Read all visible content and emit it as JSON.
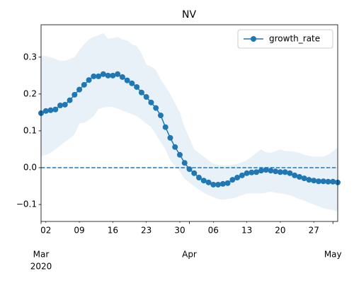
{
  "chart_data": {
    "type": "line",
    "title": "NV",
    "x": [
      "2020-03-01",
      "2020-03-02",
      "2020-03-03",
      "2020-03-04",
      "2020-03-05",
      "2020-03-06",
      "2020-03-07",
      "2020-03-08",
      "2020-03-09",
      "2020-03-10",
      "2020-03-11",
      "2020-03-12",
      "2020-03-13",
      "2020-03-14",
      "2020-03-15",
      "2020-03-16",
      "2020-03-17",
      "2020-03-18",
      "2020-03-19",
      "2020-03-20",
      "2020-03-21",
      "2020-03-22",
      "2020-03-23",
      "2020-03-24",
      "2020-03-25",
      "2020-03-26",
      "2020-03-27",
      "2020-03-28",
      "2020-03-29",
      "2020-03-30",
      "2020-03-31",
      "2020-04-01",
      "2020-04-02",
      "2020-04-03",
      "2020-04-04",
      "2020-04-05",
      "2020-04-06",
      "2020-04-07",
      "2020-04-08",
      "2020-04-09",
      "2020-04-10",
      "2020-04-11",
      "2020-04-12",
      "2020-04-13",
      "2020-04-14",
      "2020-04-15",
      "2020-04-16",
      "2020-04-17",
      "2020-04-18",
      "2020-04-19",
      "2020-04-20",
      "2020-04-21",
      "2020-04-22",
      "2020-04-23",
      "2020-04-24",
      "2020-04-25",
      "2020-04-26",
      "2020-04-27",
      "2020-04-28",
      "2020-04-29",
      "2020-04-30",
      "2020-05-01",
      "2020-05-02"
    ],
    "series": [
      {
        "name": "growth_rate",
        "color": "#1f77b4",
        "values": [
          0.148,
          0.154,
          0.156,
          0.158,
          0.169,
          0.171,
          0.183,
          0.198,
          0.212,
          0.225,
          0.238,
          0.248,
          0.248,
          0.254,
          0.25,
          0.25,
          0.254,
          0.246,
          0.237,
          0.229,
          0.219,
          0.204,
          0.192,
          0.177,
          0.162,
          0.142,
          0.11,
          0.081,
          0.056,
          0.035,
          0.013,
          -0.004,
          -0.015,
          -0.027,
          -0.035,
          -0.04,
          -0.046,
          -0.046,
          -0.044,
          -0.042,
          -0.033,
          -0.027,
          -0.021,
          -0.015,
          -0.013,
          -0.012,
          -0.008,
          -0.006,
          -0.008,
          -0.01,
          -0.012,
          -0.012,
          -0.015,
          -0.021,
          -0.025,
          -0.029,
          -0.033,
          -0.035,
          -0.037,
          -0.037,
          -0.038,
          -0.038,
          -0.04
        ]
      }
    ],
    "band": {
      "color": "#1f77b4",
      "upper": [
        0.305,
        0.303,
        0.3,
        0.295,
        0.29,
        0.29,
        0.295,
        0.3,
        0.32,
        0.335,
        0.348,
        0.355,
        0.36,
        0.365,
        0.35,
        0.352,
        0.355,
        0.348,
        0.345,
        0.335,
        0.33,
        0.31,
        0.28,
        0.275,
        0.265,
        0.24,
        0.22,
        0.2,
        0.175,
        0.15,
        0.11,
        0.08,
        0.05,
        0.04,
        0.03,
        0.02,
        0.01,
        0.008,
        0.005,
        0.006,
        0.008,
        0.01,
        0.015,
        0.02,
        0.03,
        0.04,
        0.05,
        0.042,
        0.04,
        0.045,
        0.05,
        0.045,
        0.045,
        0.043,
        0.04,
        0.035,
        0.032,
        0.03,
        0.03,
        0.03,
        0.035,
        0.045,
        0.055
      ],
      "lower": [
        0.03,
        0.035,
        0.04,
        0.05,
        0.06,
        0.07,
        0.08,
        0.09,
        0.12,
        0.122,
        0.13,
        0.14,
        0.16,
        0.163,
        0.165,
        0.165,
        0.16,
        0.155,
        0.15,
        0.145,
        0.14,
        0.13,
        0.12,
        0.11,
        0.09,
        0.07,
        0.05,
        0.02,
        0.005,
        -0.01,
        -0.03,
        -0.04,
        -0.05,
        -0.06,
        -0.068,
        -0.075,
        -0.08,
        -0.085,
        -0.087,
        -0.085,
        -0.083,
        -0.08,
        -0.075,
        -0.07,
        -0.07,
        -0.07,
        -0.07,
        -0.068,
        -0.065,
        -0.068,
        -0.07,
        -0.072,
        -0.075,
        -0.08,
        -0.085,
        -0.09,
        -0.095,
        -0.1,
        -0.105,
        -0.11,
        -0.113,
        -0.115,
        -0.12
      ]
    },
    "hline": {
      "value": 0,
      "style": "dashed"
    },
    "xlim": [
      "2020-03-01",
      "2020-05-02"
    ],
    "xticks": [
      {
        "value": "2020-03-02",
        "label": "02"
      },
      {
        "value": "2020-03-09",
        "label": "09"
      },
      {
        "value": "2020-03-16",
        "label": "16"
      },
      {
        "value": "2020-03-23",
        "label": "23"
      },
      {
        "value": "2020-03-30",
        "label": "30"
      },
      {
        "value": "2020-04-06",
        "label": "06"
      },
      {
        "value": "2020-04-13",
        "label": "13"
      },
      {
        "value": "2020-04-20",
        "label": "20"
      },
      {
        "value": "2020-04-27",
        "label": "27"
      }
    ],
    "xticks_major": [
      {
        "value": "2020-03-01",
        "label": "Mar"
      },
      {
        "value": "2020-04-01",
        "label": "Apr"
      },
      {
        "value": "2020-05-01",
        "label": "May"
      }
    ],
    "year_label": "2020",
    "ylim": [
      -0.146,
      0.388
    ],
    "yticks": [
      {
        "value": -0.1,
        "label": "−0.1"
      },
      {
        "value": 0,
        "label": "0.0"
      },
      0.1,
      0.2,
      0.3
    ],
    "legend": "upper right"
  }
}
